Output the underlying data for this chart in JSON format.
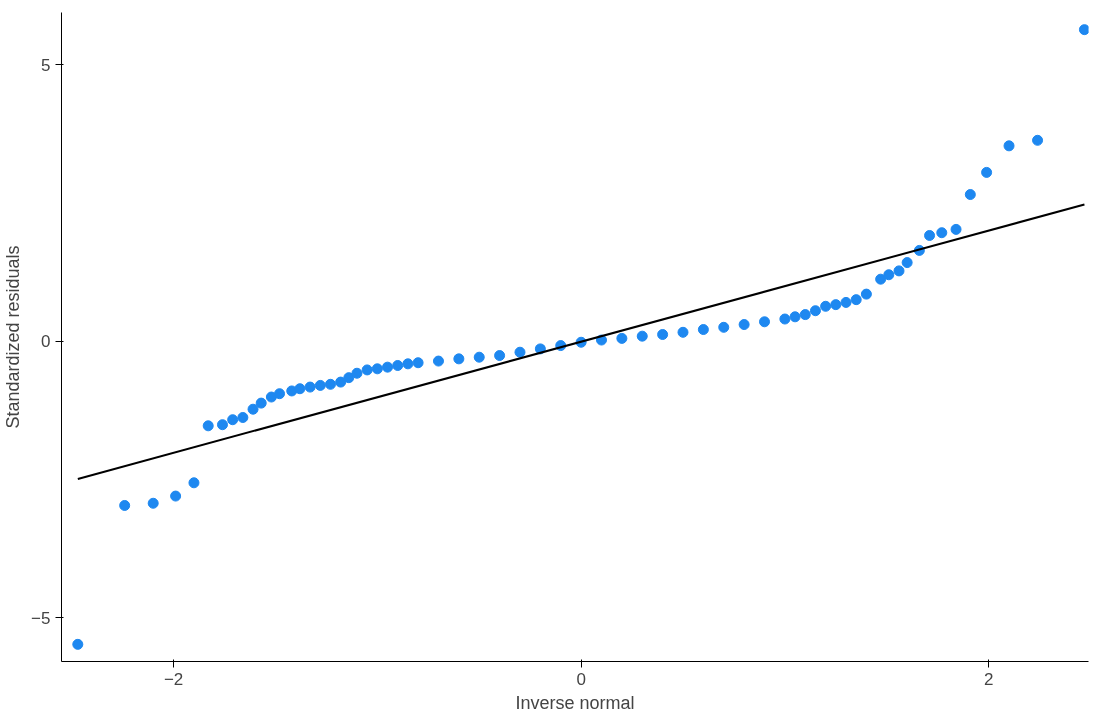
{
  "chart_data": {
    "type": "scatter",
    "xlabel": "Inverse normal",
    "ylabel": "Standardized residuals",
    "xlim": [
      -2.55,
      2.49
    ],
    "ylim": [
      -5.79,
      5.94
    ],
    "xticks": [
      -2,
      0,
      2
    ],
    "yticks": [
      -5,
      0,
      5
    ],
    "grid": false,
    "series": [
      {
        "marker": "circle",
        "color": "#1e88f0",
        "x": [
          -2.47,
          -2.24,
          -2.1,
          -1.99,
          -1.9,
          -1.83,
          -1.76,
          -1.71,
          -1.66,
          -1.61,
          -1.57,
          -1.52,
          -1.48,
          -1.42,
          -1.38,
          -1.33,
          -1.28,
          -1.23,
          -1.18,
          -1.14,
          -1.1,
          -1.05,
          -1.0,
          -0.95,
          -0.9,
          -0.85,
          -0.8,
          -0.7,
          -0.6,
          -0.5,
          -0.4,
          -0.3,
          -0.2,
          -0.1,
          0.0,
          0.1,
          0.2,
          0.3,
          0.4,
          0.5,
          0.6,
          0.7,
          0.8,
          0.9,
          1.0,
          1.05,
          1.1,
          1.15,
          1.2,
          1.25,
          1.3,
          1.35,
          1.4,
          1.47,
          1.51,
          1.56,
          1.6,
          1.66,
          1.71,
          1.77,
          1.84,
          1.91,
          1.99,
          2.1,
          2.24,
          2.47
        ],
        "values": [
          -5.48,
          -2.97,
          -2.93,
          -2.8,
          -2.56,
          -1.53,
          -1.51,
          -1.42,
          -1.38,
          -1.23,
          -1.12,
          -1.01,
          -0.95,
          -0.9,
          -0.86,
          -0.83,
          -0.8,
          -0.78,
          -0.74,
          -0.66,
          -0.58,
          -0.52,
          -0.5,
          -0.47,
          -0.44,
          -0.41,
          -0.39,
          -0.36,
          -0.32,
          -0.29,
          -0.26,
          -0.2,
          -0.14,
          -0.08,
          -0.02,
          0.02,
          0.05,
          0.09,
          0.12,
          0.16,
          0.21,
          0.25,
          0.3,
          0.35,
          0.4,
          0.44,
          0.48,
          0.55,
          0.63,
          0.66,
          0.7,
          0.75,
          0.85,
          1.12,
          1.2,
          1.27,
          1.42,
          1.64,
          1.91,
          1.96,
          2.02,
          2.65,
          3.05,
          3.53,
          3.63,
          5.63
        ]
      },
      {
        "type": "line",
        "marker": "none",
        "color": "#000000",
        "x": [
          -2.47,
          2.47
        ],
        "values": [
          -2.49,
          2.47
        ]
      }
    ]
  }
}
